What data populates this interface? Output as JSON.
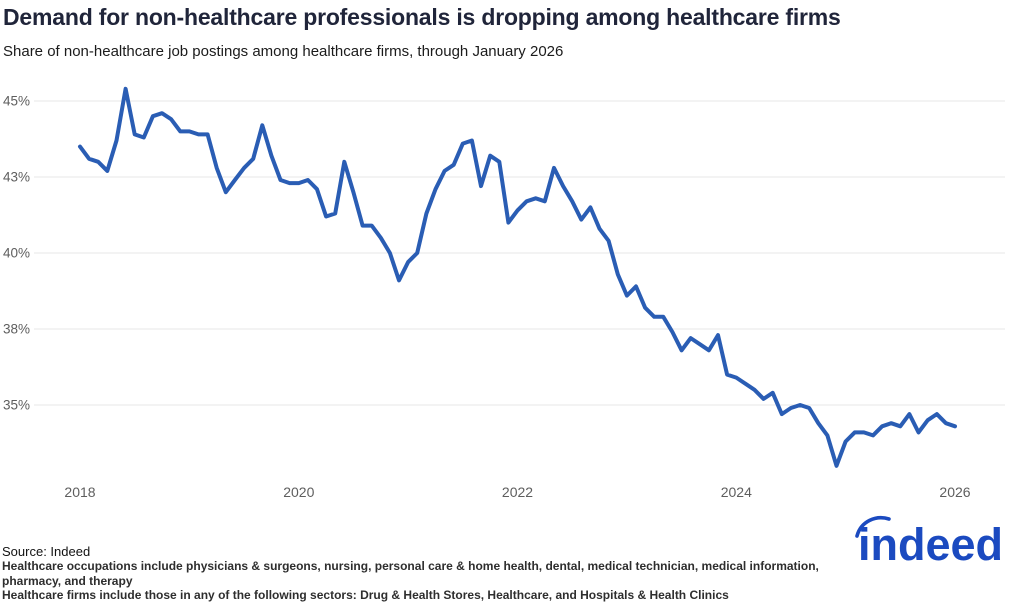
{
  "header": {
    "title": "Demand for non-healthcare professionals is dropping among healthcare firms",
    "subtitle": "Share of non-healthcare job postings among healthcare firms, through January 2026"
  },
  "footer": {
    "source": "Source: Indeed",
    "note1": "Healthcare occupations include physicians & surgeons, nursing, personal care & home health, dental, medical technician, medical information, pharmacy, and therapy",
    "note2": "Healthcare firms include those in any of the following sectors: Drug & Health Stores, Healthcare, and Hospitals & Health Clinics",
    "logo_text": "indeed"
  },
  "colors": {
    "line": "#2a5db4",
    "grid": "#e7e7e7",
    "tick": "#5e5e5e",
    "title": "#20253a",
    "body_text": "#1b1b1b",
    "note_text": "#2e2e2e",
    "logo": "#1b4ac0",
    "background": "#ffffff"
  },
  "chart_data": {
    "type": "line",
    "title": "Demand for non-healthcare professionals is dropping among healthcare firms",
    "subtitle": "Share of non-healthcare job postings among healthcare firms, through January 2026",
    "xlabel": "",
    "ylabel": "",
    "unit": "percent",
    "frequency": "monthly",
    "grid": "horizontal",
    "legend": "none",
    "ylim": [
      32.8,
      45.5
    ],
    "y_ticks": [
      {
        "value": 45.0,
        "label": "45%"
      },
      {
        "value": 42.5,
        "label": "43%"
      },
      {
        "value": 40.0,
        "label": "40%"
      },
      {
        "value": 37.5,
        "label": "38%"
      },
      {
        "value": 35.0,
        "label": "35%"
      }
    ],
    "x_ticks": [
      {
        "index": 0,
        "label": "2018"
      },
      {
        "index": 24,
        "label": "2020"
      },
      {
        "index": 48,
        "label": "2022"
      },
      {
        "index": 72,
        "label": "2024"
      },
      {
        "index": 96,
        "label": "2026"
      }
    ],
    "x_months": [
      "2018-01",
      "2018-02",
      "2018-03",
      "2018-04",
      "2018-05",
      "2018-06",
      "2018-07",
      "2018-08",
      "2018-09",
      "2018-10",
      "2018-11",
      "2018-12",
      "2019-01",
      "2019-02",
      "2019-03",
      "2019-04",
      "2019-05",
      "2019-06",
      "2019-07",
      "2019-08",
      "2019-09",
      "2019-10",
      "2019-11",
      "2019-12",
      "2020-01",
      "2020-02",
      "2020-03",
      "2020-04",
      "2020-05",
      "2020-06",
      "2020-07",
      "2020-08",
      "2020-09",
      "2020-10",
      "2020-11",
      "2020-12",
      "2021-01",
      "2021-02",
      "2021-03",
      "2021-04",
      "2021-05",
      "2021-06",
      "2021-07",
      "2021-08",
      "2021-09",
      "2021-10",
      "2021-11",
      "2021-12",
      "2022-01",
      "2022-02",
      "2022-03",
      "2022-04",
      "2022-05",
      "2022-06",
      "2022-07",
      "2022-08",
      "2022-09",
      "2022-10",
      "2022-11",
      "2022-12",
      "2023-01",
      "2023-02",
      "2023-03",
      "2023-04",
      "2023-05",
      "2023-06",
      "2023-07",
      "2023-08",
      "2023-09",
      "2023-10",
      "2023-11",
      "2023-12",
      "2024-01",
      "2024-02",
      "2024-03",
      "2024-04",
      "2024-05",
      "2024-06",
      "2024-07",
      "2024-08",
      "2024-09",
      "2024-10",
      "2024-11",
      "2024-12",
      "2025-01",
      "2025-02",
      "2025-03",
      "2025-04",
      "2025-05",
      "2025-06",
      "2025-07",
      "2025-08",
      "2025-09",
      "2025-10",
      "2025-11",
      "2025-12",
      "2026-01"
    ],
    "series": [
      {
        "name": "Share of non-healthcare job postings among healthcare firms",
        "values": [
          43.5,
          43.1,
          43.0,
          42.7,
          43.7,
          45.4,
          43.9,
          43.8,
          44.5,
          44.6,
          44.4,
          44.0,
          44.0,
          43.9,
          43.9,
          42.8,
          42.0,
          42.4,
          42.8,
          43.1,
          44.2,
          43.2,
          42.4,
          42.3,
          42.3,
          42.4,
          42.1,
          41.2,
          41.3,
          43.0,
          42.0,
          40.9,
          40.9,
          40.5,
          40.0,
          39.1,
          39.7,
          40.0,
          41.3,
          42.1,
          42.7,
          42.9,
          43.6,
          43.7,
          42.2,
          43.2,
          43.0,
          41.0,
          41.4,
          41.7,
          41.8,
          41.7,
          42.8,
          42.2,
          41.7,
          41.1,
          41.5,
          40.8,
          40.4,
          39.3,
          38.6,
          38.9,
          38.2,
          37.9,
          37.9,
          37.4,
          36.8,
          37.2,
          37.0,
          36.8,
          37.3,
          36.0,
          35.9,
          35.7,
          35.5,
          35.2,
          35.4,
          34.7,
          34.9,
          35.0,
          34.9,
          34.4,
          34.0,
          33.0,
          33.8,
          34.1,
          34.1,
          34.0,
          34.3,
          34.4,
          34.3,
          34.7,
          34.1,
          34.5,
          34.7,
          34.4,
          34.3
        ]
      }
    ]
  }
}
